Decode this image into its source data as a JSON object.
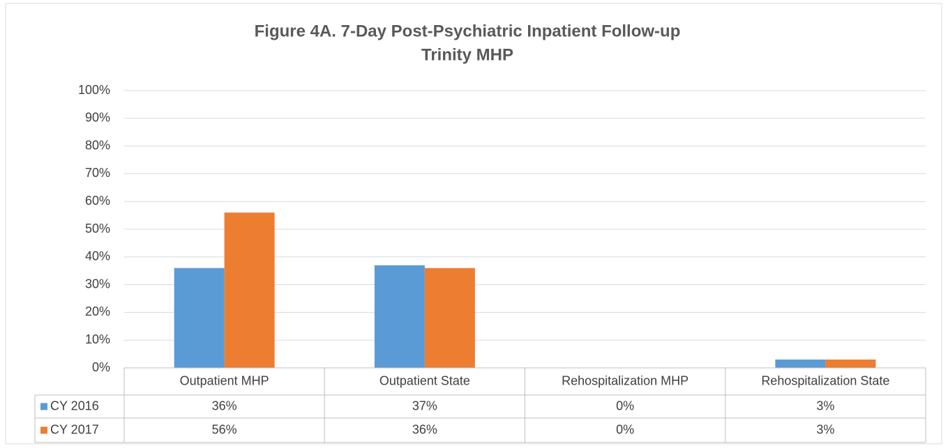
{
  "chart_data": {
    "type": "bar",
    "title": [
      "Figure 4A. 7-Day Post-Psychiatric Inpatient Follow-up",
      "Trinity MHP"
    ],
    "categories": [
      "Outpatient MHP",
      "Outpatient State",
      "Rehospitalization MHP",
      "Rehospitalization State"
    ],
    "series": [
      {
        "name": "CY 2016",
        "color": "#5b9bd5",
        "values": [
          36,
          37,
          0,
          3
        ],
        "value_labels": [
          "36%",
          "37%",
          "0%",
          "3%"
        ]
      },
      {
        "name": "CY 2017",
        "color": "#ed7d31",
        "values": [
          56,
          36,
          0,
          3
        ],
        "value_labels": [
          "56%",
          "36%",
          "0%",
          "3%"
        ]
      }
    ],
    "ylim": [
      0,
      100
    ],
    "yticks": [
      {
        "value": 0,
        "label": "0%"
      },
      {
        "value": 10,
        "label": "10%"
      },
      {
        "value": 20,
        "label": "20%"
      },
      {
        "value": 30,
        "label": "30%"
      },
      {
        "value": 40,
        "label": "40%"
      },
      {
        "value": 50,
        "label": "50%"
      },
      {
        "value": 60,
        "label": "60%"
      },
      {
        "value": 70,
        "label": "70%"
      },
      {
        "value": 80,
        "label": "80%"
      },
      {
        "value": 90,
        "label": "90%"
      },
      {
        "value": 100,
        "label": "100%"
      }
    ],
    "grid": true
  }
}
